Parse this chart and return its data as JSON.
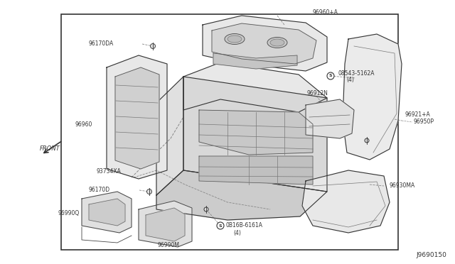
{
  "bg_color": "#ffffff",
  "border_color": "#333333",
  "text_color": "#333333",
  "diagram_id": "J9690150",
  "border": [
    0.135,
    0.055,
    0.875,
    0.945
  ],
  "figsize": [
    6.4,
    3.72
  ],
  "dpi": 100
}
